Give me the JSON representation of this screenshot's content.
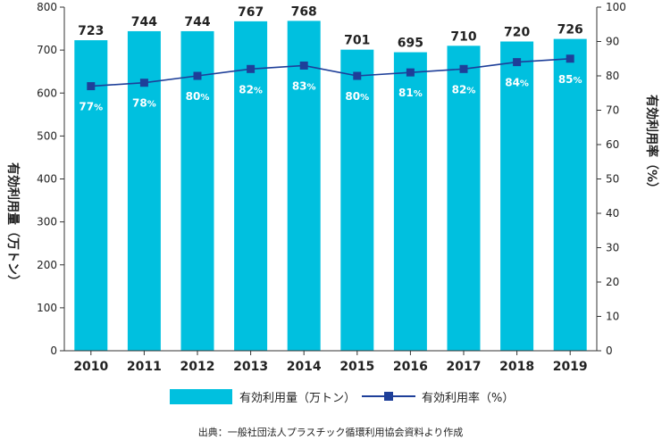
{
  "chart_data": {
    "type": "bar",
    "categories": [
      "2010",
      "2011",
      "2012",
      "2013",
      "2014",
      "2015",
      "2016",
      "2017",
      "2018",
      "2019"
    ],
    "series": [
      {
        "name": "有効利用量（万トン）",
        "type": "bar",
        "axis": "left",
        "color": "#00c0df",
        "values": [
          723,
          744,
          744,
          767,
          768,
          701,
          695,
          710,
          720,
          726
        ]
      },
      {
        "name": "有効利用率（%）",
        "type": "line",
        "axis": "right",
        "color": "#1e3f99",
        "values": [
          77,
          78,
          80,
          82,
          83,
          80,
          81,
          82,
          84,
          85
        ]
      }
    ],
    "ylabel": "有効利用量（万トン）",
    "y2label": "有効利用率（%）",
    "ylim": [
      0,
      800
    ],
    "y2lim": [
      0,
      100
    ],
    "yticks": [
      0,
      100,
      200,
      300,
      400,
      500,
      600,
      700,
      800
    ],
    "y2ticks": [
      0,
      10,
      20,
      30,
      40,
      50,
      60,
      70,
      80,
      90,
      100
    ],
    "grid": false,
    "legend": "bottom",
    "percent_suffix": "%",
    "source": "出典：一般社団法人プラスチック循環利用協会資料より作成"
  }
}
